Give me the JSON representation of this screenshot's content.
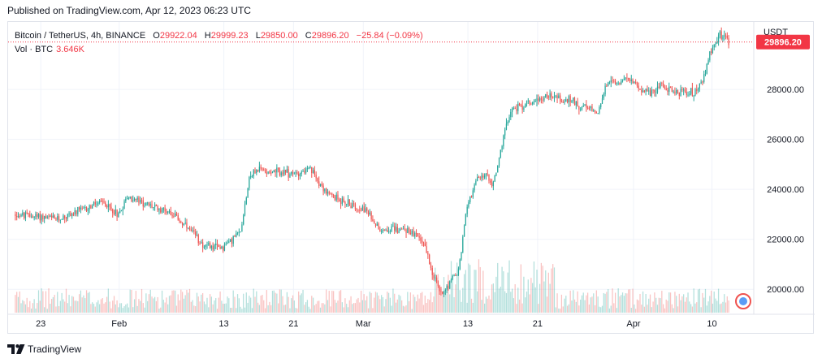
{
  "header": {
    "published_text": "Published on TradingView.com, Apr 12, 2023 06:23 UTC"
  },
  "legend": {
    "symbol": "Bitcoin / TetherUS, 4h, BINANCE",
    "open_label": "O",
    "open": "29922.04",
    "high_label": "H",
    "high": "29999.23",
    "low_label": "L",
    "low": "29850.00",
    "close_label": "C",
    "close": "29896.20",
    "change": "−25.84 (−0.09%)",
    "volume_label": "Vol · BTC",
    "volume_value": "3.646K"
  },
  "footer": {
    "brand": "TradingView",
    "logo_icon": "tradingview-logo-icon"
  },
  "colors": {
    "up": "#26a69a",
    "down": "#ef5350",
    "price_label_bg": "#f23645",
    "grid": "#f0f3fa"
  },
  "chart_data": {
    "type": "candlestick",
    "currency_label": "USDT",
    "y_ticks": [
      "28000.00",
      "26000.00",
      "24000.00",
      "22000.00",
      "20000.00"
    ],
    "y_tick_values": [
      28000,
      26000,
      24000,
      22000,
      20000
    ],
    "ylim": [
      19000,
      30700
    ],
    "x_ticks": [
      "23",
      "Feb",
      "13",
      "21",
      "Mar",
      "13",
      "21",
      "Apr",
      "10"
    ],
    "x_tick_dates": [
      "2023-01-23",
      "2023-02-01",
      "2023-02-13",
      "2023-02-21",
      "2023-03-01",
      "2023-03-13",
      "2023-03-21",
      "2023-04-01",
      "2023-04-10"
    ],
    "x_range": [
      "2023-01-20",
      "2023-04-12"
    ],
    "last_price": "29896.20",
    "last_price_value": 29896.2,
    "close_path": [
      [
        "2023-01-20",
        23000
      ],
      [
        "2023-01-23",
        22900
      ],
      [
        "2023-01-25",
        22800
      ],
      [
        "2023-01-28",
        23200
      ],
      [
        "2023-01-30",
        23500
      ],
      [
        "2023-02-01",
        23000
      ],
      [
        "2023-02-02",
        23700
      ],
      [
        "2023-02-05",
        23300
      ],
      [
        "2023-02-07",
        23100
      ],
      [
        "2023-02-09",
        22400
      ],
      [
        "2023-02-11",
        21700
      ],
      [
        "2023-02-13",
        21700
      ],
      [
        "2023-02-15",
        22300
      ],
      [
        "2023-02-16",
        24500
      ],
      [
        "2023-02-17",
        24800
      ],
      [
        "2023-02-19",
        24700
      ],
      [
        "2023-02-21",
        24600
      ],
      [
        "2023-02-23",
        24800
      ],
      [
        "2023-02-25",
        23800
      ],
      [
        "2023-02-27",
        23500
      ],
      [
        "2023-02-28",
        23300
      ],
      [
        "2023-03-01",
        23300
      ],
      [
        "2023-03-03",
        22400
      ],
      [
        "2023-03-06",
        22400
      ],
      [
        "2023-03-08",
        21900
      ],
      [
        "2023-03-09",
        20700
      ],
      [
        "2023-03-10",
        19800
      ],
      [
        "2023-03-11",
        20300
      ],
      [
        "2023-03-12",
        20700
      ],
      [
        "2023-03-13",
        23400
      ],
      [
        "2023-03-14",
        24300
      ],
      [
        "2023-03-15",
        24600
      ],
      [
        "2023-03-16",
        24200
      ],
      [
        "2023-03-17",
        25800
      ],
      [
        "2023-03-18",
        27200
      ],
      [
        "2023-03-19",
        27300
      ],
      [
        "2023-03-21",
        27600
      ],
      [
        "2023-03-23",
        27800
      ],
      [
        "2023-03-24",
        27500
      ],
      [
        "2023-03-25",
        27600
      ],
      [
        "2023-03-26",
        27300
      ],
      [
        "2023-03-28",
        27100
      ],
      [
        "2023-03-29",
        28200
      ],
      [
        "2023-03-31",
        28400
      ],
      [
        "2023-04-01",
        28300
      ],
      [
        "2023-04-03",
        27800
      ],
      [
        "2023-04-04",
        28200
      ],
      [
        "2023-04-06",
        27900
      ],
      [
        "2023-04-08",
        27900
      ],
      [
        "2023-04-09",
        28300
      ],
      [
        "2023-04-10",
        29600
      ],
      [
        "2023-04-11",
        30200
      ],
      [
        "2023-04-12",
        29896
      ]
    ]
  }
}
